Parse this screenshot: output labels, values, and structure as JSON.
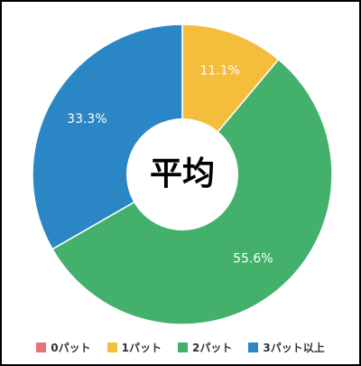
{
  "chart_data": {
    "type": "pie",
    "donut": true,
    "center_text": "平均",
    "categories": [
      "0パット",
      "1パット",
      "2パット",
      "3パット以上"
    ],
    "values": [
      0,
      11.1,
      55.6,
      33.3
    ],
    "labels": [
      "",
      "11.1%",
      "55.6%",
      "33.3%"
    ],
    "colors": [
      "#e8727a",
      "#f5bd3c",
      "#43b06c",
      "#2b86c5"
    ],
    "legend_position": "bottom"
  }
}
